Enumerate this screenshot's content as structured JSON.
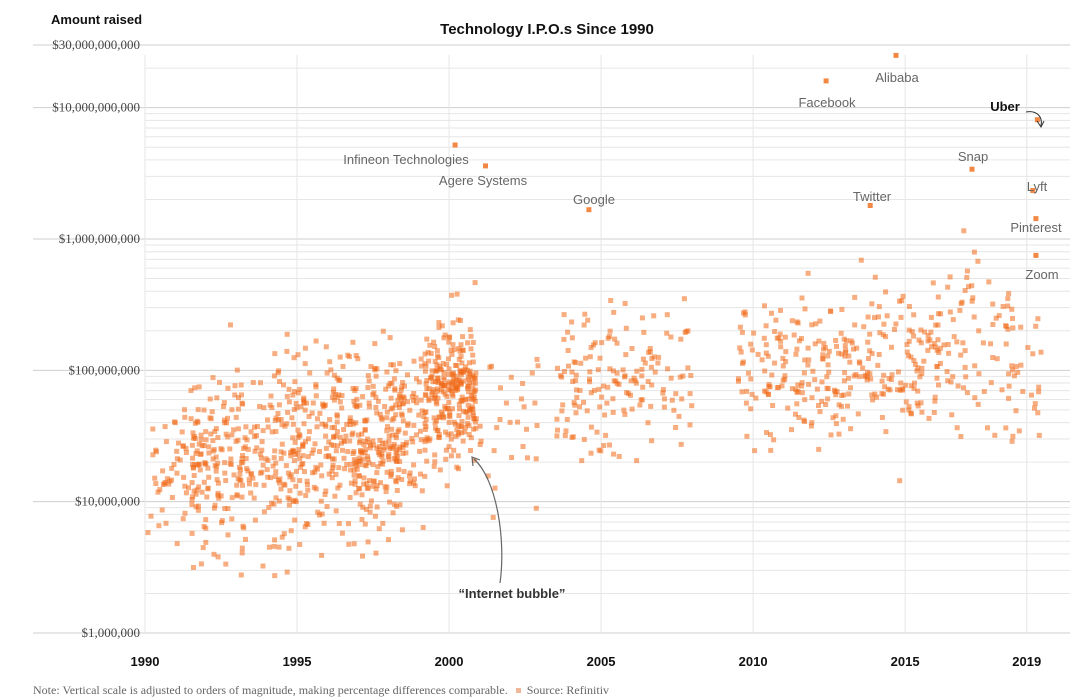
{
  "chart_data": {
    "type": "scatter",
    "title": "Technology I.P.O.s Since 1990",
    "ylabel": "Amount raised",
    "xlabel": "",
    "y_scale": "log",
    "ylim": [
      1000000,
      30000000000
    ],
    "xlim": [
      1990,
      2019.6
    ],
    "y_ticks": [
      {
        "value": 30000000000,
        "label": "$30,000,000,000"
      },
      {
        "value": 10000000000,
        "label": "$10,000,000,000"
      },
      {
        "value": 1000000000,
        "label": "$1,000,000,000"
      },
      {
        "value": 100000000,
        "label": "$100,000,000"
      },
      {
        "value": 10000000,
        "label": "$10,000,000"
      },
      {
        "value": 1000000,
        "label": "$1,000,000"
      }
    ],
    "x_ticks": [
      {
        "value": 1990,
        "label": "1990"
      },
      {
        "value": 1995,
        "label": "1995"
      },
      {
        "value": 2000,
        "label": "2000"
      },
      {
        "value": 2005,
        "label": "2005"
      },
      {
        "value": 2010,
        "label": "2010"
      },
      {
        "value": 2015,
        "label": "2015"
      },
      {
        "value": 2019,
        "label": "2019"
      }
    ],
    "labeled_ipos": [
      {
        "name": "Alibaba",
        "year": 2014.7,
        "amount": 25000000000
      },
      {
        "name": "Facebook",
        "year": 2012.4,
        "amount": 16000000000
      },
      {
        "name": "Uber",
        "year": 2019.35,
        "amount": 8100000000
      },
      {
        "name": "Infineon Technologies",
        "year": 2000.2,
        "amount": 5200000000
      },
      {
        "name": "Agere Systems",
        "year": 2001.2,
        "amount": 3600000000
      },
      {
        "name": "Snap",
        "year": 2017.2,
        "amount": 3400000000
      },
      {
        "name": "Twitter",
        "year": 2013.85,
        "amount": 1800000000
      },
      {
        "name": "Google",
        "year": 2004.6,
        "amount": 1670000000
      },
      {
        "name": "Lyft",
        "year": 2019.2,
        "amount": 2340000000
      },
      {
        "name": "Pinterest",
        "year": 2019.3,
        "amount": 1430000000
      },
      {
        "name": "Zoom",
        "year": 2019.3,
        "amount": 750000000
      }
    ],
    "annotations": [
      {
        "text": "“Internet bubble”",
        "year": 2000.7,
        "amount": 28000000
      }
    ],
    "grid": "horizontal lines at each y value",
    "generated_series": {
      "seed": 13,
      "clusters": [
        {
          "x_from": 1990.0,
          "x_to": 1992.0,
          "count": 60,
          "log10_center": 7.3,
          "log10_spread": 0.4
        },
        {
          "x_from": 1991.5,
          "x_to": 1994.8,
          "count": 260,
          "log10_center": 7.35,
          "log10_spread": 0.45
        },
        {
          "x_from": 1994.8,
          "x_to": 1998.5,
          "count": 380,
          "log10_center": 7.45,
          "log10_spread": 0.42
        },
        {
          "x_from": 1998.0,
          "x_to": 1999.3,
          "count": 80,
          "log10_center": 7.6,
          "log10_spread": 0.4
        },
        {
          "x_from": 1999.2,
          "x_to": 2000.9,
          "count": 270,
          "log10_center": 7.85,
          "log10_spread": 0.35
        },
        {
          "x_from": 2001.0,
          "x_to": 2003.0,
          "count": 30,
          "log10_center": 7.7,
          "log10_spread": 0.4
        },
        {
          "x_from": 2003.5,
          "x_to": 2008.0,
          "count": 160,
          "log10_center": 7.95,
          "log10_spread": 0.35
        },
        {
          "x_from": 2009.5,
          "x_to": 2014.0,
          "count": 200,
          "log10_center": 8.0,
          "log10_spread": 0.35
        },
        {
          "x_from": 2014.0,
          "x_to": 2016.0,
          "count": 90,
          "log10_center": 8.05,
          "log10_spread": 0.35
        },
        {
          "x_from": 2016.0,
          "x_to": 2019.5,
          "count": 110,
          "log10_center": 8.15,
          "log10_spread": 0.4
        }
      ]
    }
  },
  "note": "Note: Vertical scale is adjusted to orders of magnitude, making percentage differences comparable.",
  "source": "Source: Refinitiv",
  "colors": {
    "marker": "#f06a17",
    "bold_label": "#111111",
    "grid": "#dddddd",
    "muted": "#666666"
  }
}
